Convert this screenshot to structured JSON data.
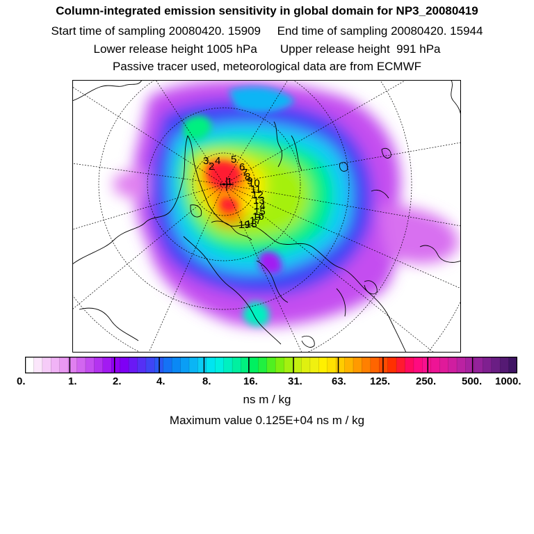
{
  "header": {
    "title": "Column-integrated emission sensitivity in global domain for NP3_20080419",
    "sampling_line": "Start time of sampling 20080420. 15909     End time of sampling 20080420. 15944",
    "release_line": "Lower release height 1005 hPa       Upper release height  991 hPa",
    "tracer_line": "Passive tracer used, meteorological data are from ECMWF"
  },
  "map": {
    "projection": "north-polar-stereographic",
    "trajectory_labels": [
      "1",
      "2",
      "3",
      "4",
      "5",
      "6",
      "7",
      "8",
      "9",
      "10",
      "11",
      "12",
      "13",
      "14",
      "15",
      "16",
      "17",
      "18",
      "19"
    ]
  },
  "colorbar": {
    "tick_labels": [
      "0.",
      "1.",
      "2.",
      "4.",
      "8.",
      "16.",
      "31.",
      "63.",
      "125.",
      "250.",
      "500.",
      "1000."
    ],
    "colors": [
      "#ffffff",
      "#fbe6fb",
      "#f6ccf8",
      "#f1b3f6",
      "#ea99f3",
      "#e080f0",
      "#d266f0",
      "#c44df0",
      "#b433f0",
      "#a31af2",
      "#9100f3",
      "#7f00f5",
      "#6a19f5",
      "#5530f5",
      "#3f45f5",
      "#2a5af5",
      "#1572f5",
      "#0a88f5",
      "#0a9ef5",
      "#0ab5f5",
      "#0acdf5",
      "#00e5f0",
      "#00f0e0",
      "#00f0c0",
      "#00f0a0",
      "#00f080",
      "#00f060",
      "#20f040",
      "#50f020",
      "#7df010",
      "#a5f010",
      "#c5f010",
      "#dff010",
      "#f0f010",
      "#fff000",
      "#ffe000",
      "#ffcc00",
      "#ffb400",
      "#ff9a00",
      "#ff8000",
      "#ff6500",
      "#ff4a00",
      "#ff3000",
      "#ff1a30",
      "#ff0a60",
      "#ff0a80",
      "#f8108f",
      "#ee1495",
      "#e01a9a",
      "#cf1ea0",
      "#bb22a2",
      "#a822a0",
      "#94229a",
      "#7f2090",
      "#6a1e84",
      "#551a74",
      "#401464"
    ],
    "units": "ns m / kg",
    "max_value_text": "Maximum value  0.125E+04 ns m / kg"
  }
}
